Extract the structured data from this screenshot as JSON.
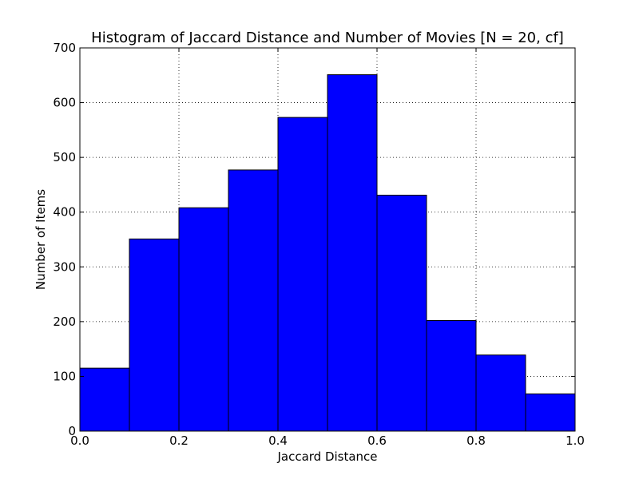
{
  "chart_data": {
    "type": "bar",
    "title": "Histogram of Jaccard Distance and Number of Movies [N = 20, cf]",
    "xlabel": "Jaccard Distance",
    "ylabel": "Number of Items",
    "xlim": [
      0.0,
      1.0
    ],
    "ylim": [
      0,
      700
    ],
    "xticks": [
      "0.0",
      "0.2",
      "0.4",
      "0.6",
      "0.8",
      "1.0"
    ],
    "yticks": [
      "0",
      "100",
      "200",
      "300",
      "400",
      "500",
      "600",
      "700"
    ],
    "grid": true,
    "bar_color": "#0000ff",
    "bins": [
      {
        "x0": 0.0,
        "x1": 0.1,
        "value": 115
      },
      {
        "x0": 0.1,
        "x1": 0.2,
        "value": 351
      },
      {
        "x0": 0.2,
        "x1": 0.3,
        "value": 408
      },
      {
        "x0": 0.3,
        "x1": 0.4,
        "value": 477
      },
      {
        "x0": 0.4,
        "x1": 0.5,
        "value": 573
      },
      {
        "x0": 0.5,
        "x1": 0.6,
        "value": 651
      },
      {
        "x0": 0.6,
        "x1": 0.7,
        "value": 431
      },
      {
        "x0": 0.7,
        "x1": 0.8,
        "value": 202
      },
      {
        "x0": 0.8,
        "x1": 0.9,
        "value": 139
      },
      {
        "x0": 0.9,
        "x1": 1.0,
        "value": 68
      }
    ]
  }
}
